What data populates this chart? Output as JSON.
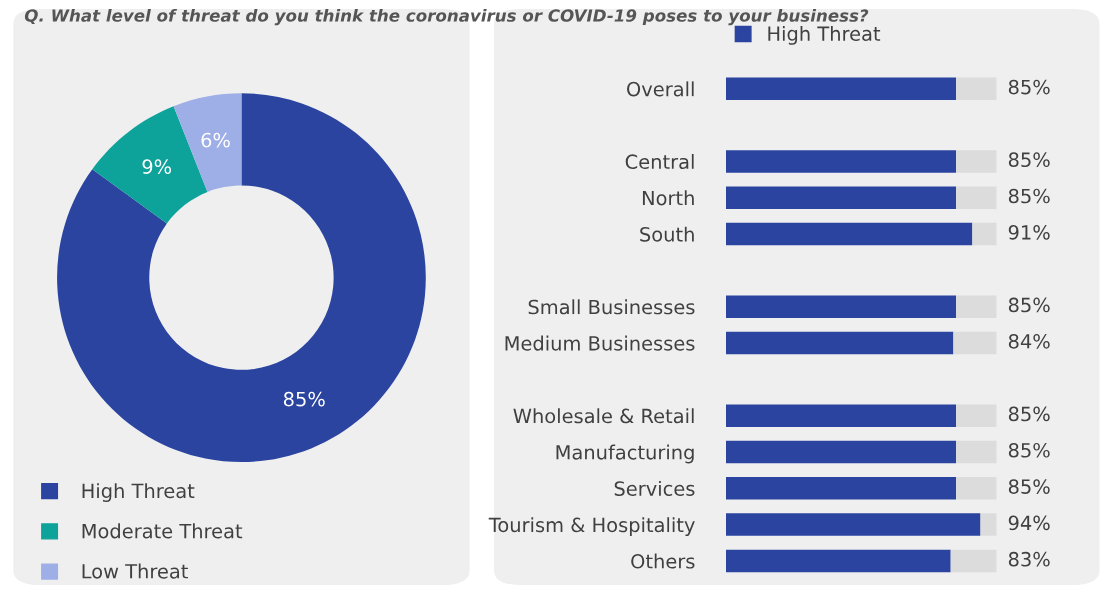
{
  "chart_data": [
    {
      "type": "donut",
      "title": "Q. What level of threat do you think the coronavirus or COVID-19 poses to your business?",
      "categories": [
        "High Threat",
        "Moderate Threat",
        "Low Threat"
      ],
      "values": [
        85,
        9,
        6
      ],
      "value_labels": [
        "85%",
        "9%",
        "6%"
      ],
      "colors": [
        "#2a44a0",
        "#0ea39a",
        "#9eaee6"
      ],
      "legend": "bottom left"
    },
    {
      "type": "bar",
      "orientation": "horizontal",
      "stacked": true,
      "legend": "top",
      "categories": [
        "Overall",
        null,
        "Central",
        "North",
        "South",
        null,
        "Small Businesses",
        "Medium Businesses",
        null,
        "Wholesale & Retail",
        "Manufacturing",
        "Services",
        "Tourism & Hospitality",
        "Others"
      ],
      "xlim": [
        0,
        100
      ],
      "tick_labels": "y",
      "series": [
        {
          "name": "High Threat",
          "color": "#2a44a0",
          "values": [
            85,
            null,
            85,
            85,
            91,
            null,
            85,
            84,
            null,
            85,
            85,
            85,
            94,
            83
          ],
          "value_labels": [
            "85%",
            null,
            "85%",
            "85%",
            "91%",
            null,
            "85%",
            "84%",
            null,
            "85%",
            "85%",
            "85%",
            "94%",
            "83%"
          ]
        },
        {
          "color": "#dcdcdc",
          "values": [
            15,
            null,
            15,
            15,
            9,
            null,
            15,
            16,
            null,
            15,
            15,
            15,
            6,
            17
          ]
        }
      ]
    }
  ]
}
